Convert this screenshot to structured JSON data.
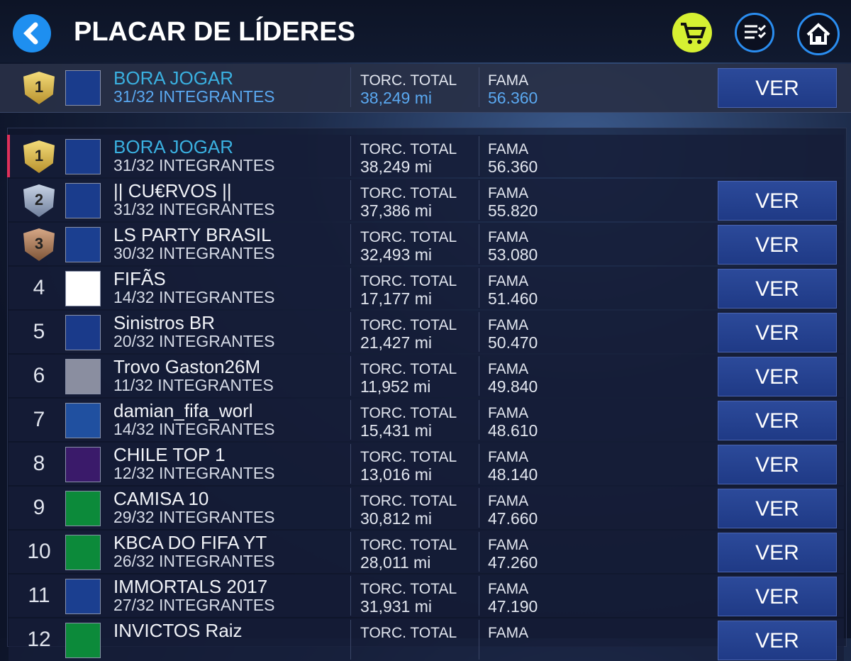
{
  "header": {
    "title": "PLACAR DE LÍDERES"
  },
  "featured": {
    "rank": "1",
    "name": "BORA JOGAR",
    "members": "31/32 INTEGRANTES",
    "fans_label": "TORC. TOTAL",
    "fans": "38,249 mi",
    "fame_label": "FAMA",
    "fame": "56.360",
    "button": "VER"
  },
  "rows": [
    {
      "rank": "1",
      "name": "BORA JOGAR",
      "members": "31/32 INTEGRANTES",
      "fans_label": "TORC. TOTAL",
      "fans": "38,249 mi",
      "fame_label": "FAMA",
      "fame": "56.360"
    },
    {
      "rank": "2",
      "name": "|| CU€RVOS ||",
      "members": "31/32 INTEGRANTES",
      "fans_label": "TORC. TOTAL",
      "fans": "37,386 mi",
      "fame_label": "FAMA",
      "fame": "55.820",
      "button": "VER"
    },
    {
      "rank": "3",
      "name": "LS PARTY BRASIL",
      "members": "30/32 INTEGRANTES",
      "fans_label": "TORC. TOTAL",
      "fans": "32,493 mi",
      "fame_label": "FAMA",
      "fame": "53.080",
      "button": "VER"
    },
    {
      "rank": "4",
      "name": "FIFÃS",
      "members": "14/32 INTEGRANTES",
      "fans_label": "TORC. TOTAL",
      "fans": "17,177 mi",
      "fame_label": "FAMA",
      "fame": "51.460",
      "button": "VER"
    },
    {
      "rank": "5",
      "name": "Sinistros BR",
      "members": "20/32 INTEGRANTES",
      "fans_label": "TORC. TOTAL",
      "fans": "21,427 mi",
      "fame_label": "FAMA",
      "fame": "50.470",
      "button": "VER"
    },
    {
      "rank": "6",
      "name": "Trovo Gaston26M",
      "members": "11/32 INTEGRANTES",
      "fans_label": "TORC. TOTAL",
      "fans": "11,952 mi",
      "fame_label": "FAMA",
      "fame": "49.840",
      "button": "VER"
    },
    {
      "rank": "7",
      "name": "damian_fifa_worl",
      "members": "14/32 INTEGRANTES",
      "fans_label": "TORC. TOTAL",
      "fans": "15,431 mi",
      "fame_label": "FAMA",
      "fame": "48.610",
      "button": "VER"
    },
    {
      "rank": "8",
      "name": "CHILE TOP 1",
      "members": "12/32 INTEGRANTES",
      "fans_label": "TORC. TOTAL",
      "fans": "13,016 mi",
      "fame_label": "FAMA",
      "fame": "48.140",
      "button": "VER"
    },
    {
      "rank": "9",
      "name": "CAMISA 10",
      "members": "29/32 INTEGRANTES",
      "fans_label": "TORC. TOTAL",
      "fans": "30,812 mi",
      "fame_label": "FAMA",
      "fame": "47.660",
      "button": "VER"
    },
    {
      "rank": "10",
      "name": "KBCA DO FIFA YT",
      "members": "26/32 INTEGRANTES",
      "fans_label": "TORC. TOTAL",
      "fans": "28,011 mi",
      "fame_label": "FAMA",
      "fame": "47.260",
      "button": "VER"
    },
    {
      "rank": "11",
      "name": "IMMORTALS 2017",
      "members": "27/32 INTEGRANTES",
      "fans_label": "TORC. TOTAL",
      "fans": "31,931 mi",
      "fame_label": "FAMA",
      "fame": "47.190",
      "button": "VER"
    },
    {
      "rank": "12",
      "name": "INVICTOS Raiz",
      "fans_label": "TORC. TOTAL",
      "fame_label": "FAMA",
      "button": "VER"
    }
  ]
}
